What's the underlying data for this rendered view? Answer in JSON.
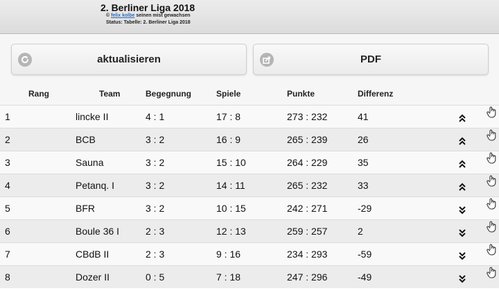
{
  "header": {
    "title": "2. Berliner Liga 2018",
    "credit_prefix": "©",
    "credit_link": "felix kolbe",
    "credit_suffix": "seinen mist gewachsen",
    "status": "Status: Tabelle: 2. Berliner Liga 2018"
  },
  "toolbar": {
    "refresh_label": "aktualisieren",
    "refresh_icon": "refresh-icon",
    "pdf_label": "PDF",
    "pdf_icon": "share-icon"
  },
  "table": {
    "columns": [
      "Rang",
      "Team",
      "Begegnung",
      "Spiele",
      "Punkte",
      "Differenz"
    ],
    "rows": [
      {
        "rang": "1",
        "team": "lincke II",
        "begegnung": "4 : 1",
        "spiele": "17 : 8",
        "punkte": "273 : 232",
        "differenz": "41",
        "trend": "up"
      },
      {
        "rang": "2",
        "team": "BCB",
        "begegnung": "3 : 2",
        "spiele": "16 : 9",
        "punkte": "265 : 239",
        "differenz": "26",
        "trend": "up"
      },
      {
        "rang": "3",
        "team": "Sauna",
        "begegnung": "3 : 2",
        "spiele": "15 : 10",
        "punkte": "264 : 229",
        "differenz": "35",
        "trend": "up"
      },
      {
        "rang": "4",
        "team": "Petanq. I",
        "begegnung": "3 : 2",
        "spiele": "14 : 11",
        "punkte": "265 : 232",
        "differenz": "33",
        "trend": "up"
      },
      {
        "rang": "5",
        "team": "BFR",
        "begegnung": "3 : 2",
        "spiele": "10 : 15",
        "punkte": "242 : 271",
        "differenz": "-29",
        "trend": "down"
      },
      {
        "rang": "6",
        "team": "Boule 36 I",
        "begegnung": "2 : 3",
        "spiele": "12 : 13",
        "punkte": "259 : 257",
        "differenz": "2",
        "trend": "down"
      },
      {
        "rang": "7",
        "team": "CBdB II",
        "begegnung": "2 : 3",
        "spiele": "9 : 16",
        "punkte": "234 : 293",
        "differenz": "-59",
        "trend": "down"
      },
      {
        "rang": "8",
        "team": "Dozer II",
        "begegnung": "0 : 5",
        "spiele": "7 : 18",
        "punkte": "247 : 296",
        "differenz": "-49",
        "trend": "down"
      }
    ]
  }
}
